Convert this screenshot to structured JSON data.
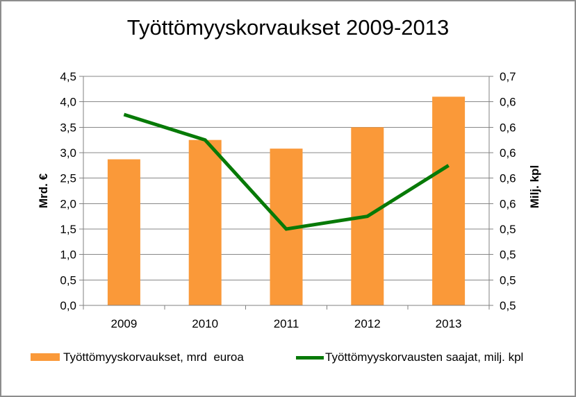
{
  "window": {
    "background": "#FFFFFF",
    "border_color": "#8D8D8D"
  },
  "chart": {
    "title": "Työttömyyskorvaukset 2009-2013",
    "left_axis_title": "Mrd. €",
    "right_axis_title": "Milj. kpl",
    "legend": {
      "bar_label": "Työttömyyskorvaukset, mrd  euroa",
      "line_label": "Työttömyyskorvausten saajat, milj. kpl"
    }
  },
  "chart_data": {
    "type": "bar",
    "subtype": "combo-bar-line-dual-axis",
    "title": "Työttömyyskorvaukset 2009-2013",
    "categories": [
      "2009",
      "2010",
      "2011",
      "2012",
      "2013"
    ],
    "series": [
      {
        "name": "Työttömyyskorvaukset, mrd  euroa",
        "type": "bar",
        "axis": "left",
        "color": "#FA9939",
        "values": [
          2.87,
          3.25,
          3.08,
          3.5,
          4.1
        ]
      },
      {
        "name": "Työttömyyskorvausten saajat, milj. kpl",
        "type": "line",
        "axis": "right",
        "color": "#077A07",
        "values": [
          0.63,
          0.61,
          0.54,
          0.55,
          0.59
        ]
      }
    ],
    "left_axis": {
      "title": "Mrd. €",
      "min": 0,
      "max": 4.5,
      "step": 0.5,
      "tick_labels": [
        "0,0",
        "0,5",
        "1,0",
        "1,5",
        "2,0",
        "2,5",
        "3,0",
        "3,5",
        "4,0",
        "4,5"
      ]
    },
    "right_axis": {
      "title": "Milj. kpl",
      "min": 0.48,
      "max": 0.66,
      "step": 0.02,
      "tick_labels": [
        "0,5",
        "0,5",
        "0,5",
        "0,5",
        "0,6",
        "0,6",
        "0,6",
        "0,6",
        "0,6",
        "0,7"
      ]
    },
    "grid": true,
    "gridline_color": "#878787",
    "axis_color": "#808080",
    "legend_position": "bottom"
  }
}
